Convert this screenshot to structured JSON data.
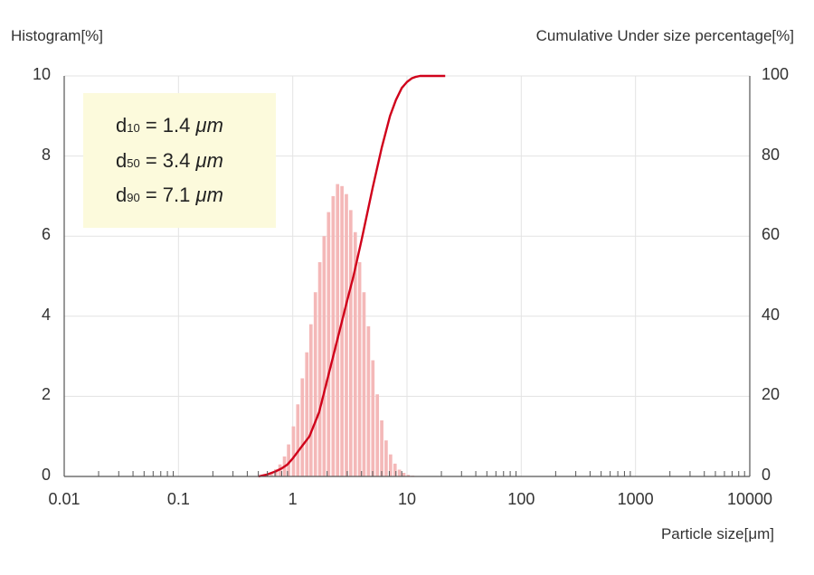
{
  "chart_data": {
    "type": "bar",
    "left_axis_label": "Histogram[%]",
    "right_axis_label": "Cumulative Under size percentage[%]",
    "xlabel": "Particle size[μm]",
    "x_scale": "log",
    "xlim": [
      0.01,
      10000
    ],
    "ylim_left": [
      0,
      10
    ],
    "ylim_right": [
      0,
      100
    ],
    "x_tick_labels": [
      "0.01",
      "0.1",
      "1",
      "10",
      "100",
      "1000",
      "10000"
    ],
    "x_tick_values": [
      0.01,
      0.1,
      1,
      10,
      100,
      1000,
      10000
    ],
    "y_left_tick_labels": [
      "0",
      "2",
      "4",
      "6",
      "8",
      "10"
    ],
    "y_left_tick_values": [
      0,
      2,
      4,
      6,
      8,
      10
    ],
    "y_right_tick_labels": [
      "0",
      "20",
      "40",
      "60",
      "80",
      "100"
    ],
    "y_right_tick_values": [
      0,
      20,
      40,
      60,
      80,
      100
    ],
    "grid": true,
    "histogram": {
      "color": "#f4b8b8",
      "bins_lower_um": [
        0.57,
        0.62,
        0.68,
        0.74,
        0.81,
        0.88,
        0.97,
        1.06,
        1.16,
        1.27,
        1.38,
        1.51,
        1.65,
        1.8,
        1.97,
        2.16,
        2.36,
        2.58,
        2.82,
        3.08,
        3.37,
        3.68,
        4.02,
        4.4,
        4.81,
        5.26,
        5.75,
        6.28,
        6.87,
        7.51,
        8.21,
        8.97,
        9.81,
        10.72,
        11.72
      ],
      "bin_ratio": 1.093,
      "values": [
        0.05,
        0.1,
        0.18,
        0.3,
        0.5,
        0.8,
        1.25,
        1.8,
        2.45,
        3.1,
        3.8,
        4.6,
        5.35,
        6.0,
        6.6,
        7.0,
        7.3,
        7.25,
        7.05,
        6.65,
        6.1,
        5.35,
        4.6,
        3.75,
        2.9,
        2.05,
        1.4,
        0.9,
        0.55,
        0.32,
        0.17,
        0.09,
        0.04,
        0.02,
        0.01
      ]
    },
    "cumulative": {
      "color": "#d0021b",
      "x": [
        0.5,
        0.6,
        0.7,
        0.8,
        0.9,
        1.0,
        1.2,
        1.4,
        1.7,
        2.0,
        2.5,
        3.0,
        3.4,
        4.0,
        5.0,
        6.0,
        7.1,
        8.0,
        9.0,
        10.0,
        11.0,
        12.0,
        13.0,
        15.0
      ],
      "y": [
        0,
        0.5,
        1.2,
        2.0,
        3.0,
        4.5,
        7.5,
        10.0,
        16.0,
        24.0,
        35.0,
        44.0,
        50.0,
        59.0,
        72.0,
        82.0,
        90.0,
        94.0,
        97.0,
        98.5,
        99.4,
        99.8,
        100.0,
        100.0
      ]
    }
  },
  "annotations": {
    "d10": {
      "label": "d",
      "sub": "10",
      "eq": " = ",
      "value": "1.4",
      "unit": "μm"
    },
    "d50": {
      "label": "d",
      "sub": "50",
      "eq": " = ",
      "value": "3.4",
      "unit": "μm"
    },
    "d90": {
      "label": "d",
      "sub": "90",
      "eq": " = ",
      "value": "7.1",
      "unit": "μm"
    }
  }
}
